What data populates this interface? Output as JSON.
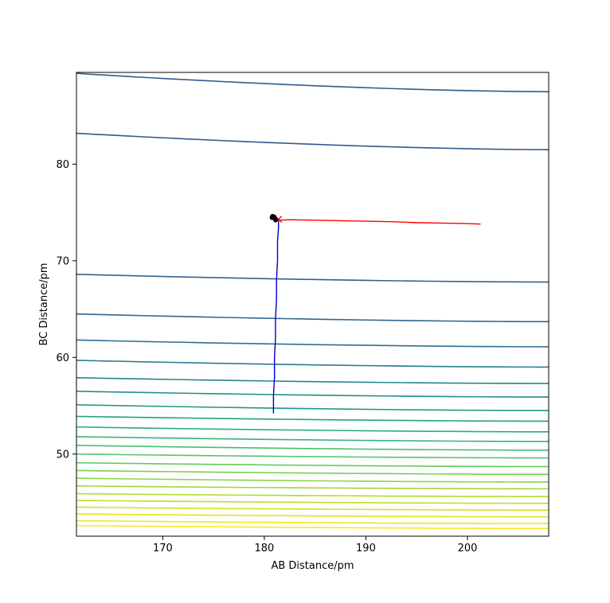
{
  "chart_data": {
    "type": "line",
    "title": "",
    "xlabel": "AB Distance/pm",
    "ylabel": "BC Distance/pm",
    "xlim": [
      161.5,
      208.0
    ],
    "ylim": [
      41.5,
      89.5
    ],
    "xticks": [
      170,
      180,
      190,
      200
    ],
    "yticks": [
      50,
      60,
      70,
      80
    ],
    "grid": false,
    "legend": "none",
    "contour_levels": [
      {
        "y_left": 89.4,
        "y_right": 87.5,
        "color": "#2f5c8a"
      },
      {
        "y_left": 83.2,
        "y_right": 81.5,
        "color": "#335a8b"
      },
      {
        "y_left": 68.6,
        "y_right": 67.8,
        "color": "#35608d"
      },
      {
        "y_left": 64.5,
        "y_right": 63.7,
        "color": "#31668e"
      },
      {
        "y_left": 61.8,
        "y_right": 61.1,
        "color": "#2c718e"
      },
      {
        "y_left": 59.7,
        "y_right": 59.0,
        "color": "#287c8e"
      },
      {
        "y_left": 57.9,
        "y_right": 57.3,
        "color": "#23868d"
      },
      {
        "y_left": 56.5,
        "y_right": 55.9,
        "color": "#1f918c"
      },
      {
        "y_left": 55.1,
        "y_right": 54.5,
        "color": "#1f998a"
      },
      {
        "y_left": 53.9,
        "y_right": 53.4,
        "color": "#21a386"
      },
      {
        "y_left": 52.8,
        "y_right": 52.3,
        "color": "#29ac81"
      },
      {
        "y_left": 51.8,
        "y_right": 51.3,
        "color": "#36b678"
      },
      {
        "y_left": 50.9,
        "y_right": 50.4,
        "color": "#45be70"
      },
      {
        "y_left": 50.0,
        "y_right": 49.6,
        "color": "#54c568"
      },
      {
        "y_left": 49.1,
        "y_right": 48.7,
        "color": "#64cb5e"
      },
      {
        "y_left": 48.3,
        "y_right": 47.9,
        "color": "#77d153"
      },
      {
        "y_left": 47.5,
        "y_right": 47.1,
        "color": "#89d548"
      },
      {
        "y_left": 46.7,
        "y_right": 46.4,
        "color": "#9dd93a"
      },
      {
        "y_left": 45.9,
        "y_right": 45.6,
        "color": "#b0dd2e"
      },
      {
        "y_left": 45.2,
        "y_right": 44.9,
        "color": "#c2df23"
      },
      {
        "y_left": 44.5,
        "y_right": 44.2,
        "color": "#d5e21a"
      },
      {
        "y_left": 43.8,
        "y_right": 43.5,
        "color": "#e5e419"
      },
      {
        "y_left": 43.1,
        "y_right": 42.8,
        "color": "#f1e51d"
      },
      {
        "y_left": 42.6,
        "y_right": 42.3,
        "color": "#fde725"
      }
    ],
    "series": [
      {
        "color": "#0000cc",
        "x": [
          180.9,
          180.9,
          181.0,
          181.0,
          181.1,
          181.1,
          181.2,
          181.2,
          181.3,
          181.3,
          181.3,
          181.4,
          181.4
        ],
        "y": [
          54.2,
          56.0,
          58.0,
          60.0,
          62.0,
          64.0,
          66.0,
          68.0,
          70.0,
          71.0,
          72.0,
          73.5,
          74.3
        ]
      },
      {
        "color": "#ff0000",
        "x": [
          181.4,
          182.5,
          185.0,
          187.5,
          190.0,
          192.5,
          195.0,
          197.5,
          200.0,
          201.3
        ],
        "y": [
          74.2,
          74.25,
          74.2,
          74.15,
          74.1,
          74.05,
          73.95,
          73.9,
          73.85,
          73.8
        ]
      }
    ],
    "markers": [
      {
        "x": 181.4,
        "y": 74.3,
        "symbol": "x",
        "color": "#ff0000"
      },
      {
        "x": 180.8,
        "y": 74.6,
        "symbol": "dot-cluster",
        "color": "#000000"
      }
    ]
  }
}
